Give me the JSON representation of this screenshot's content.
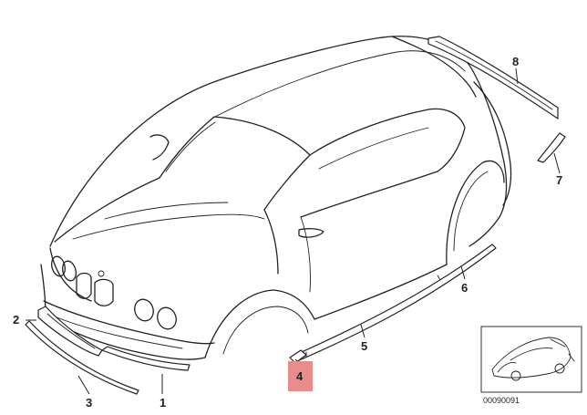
{
  "callouts": [
    {
      "label": "1"
    },
    {
      "label": "2"
    },
    {
      "label": "3"
    },
    {
      "label": "4",
      "highlighted": true
    },
    {
      "label": "5"
    },
    {
      "label": "6"
    },
    {
      "label": "7"
    },
    {
      "label": "8"
    }
  ],
  "drawing_code": "00090091",
  "highlight_color": "#ea8c8c",
  "line_color": "#222222"
}
